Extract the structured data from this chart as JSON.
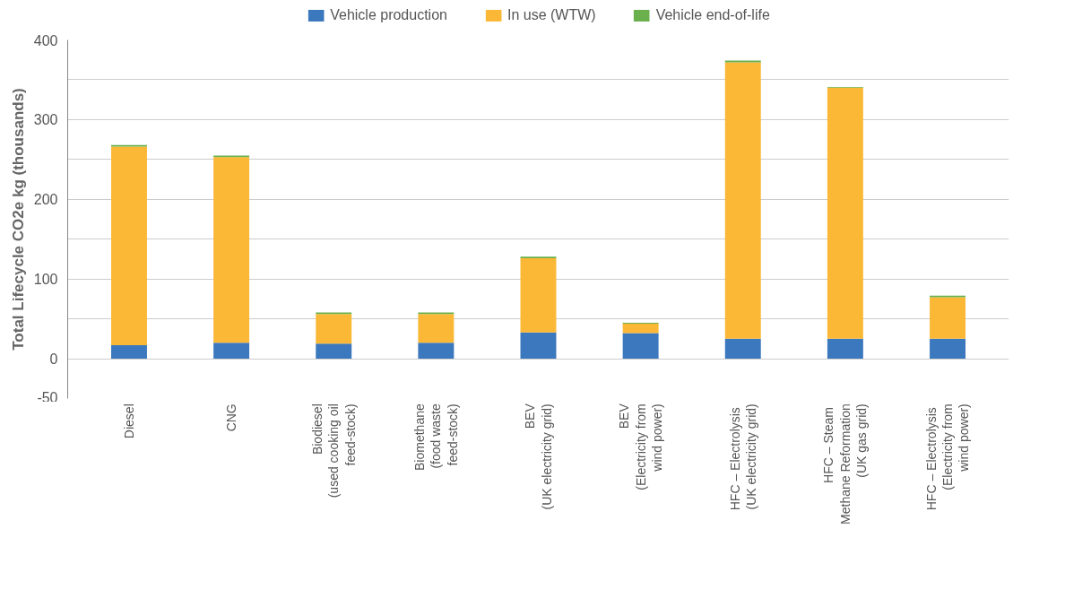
{
  "chart_data": {
    "type": "bar",
    "stacked": true,
    "ylabel": "Total Lifecycle CO2e kg (thousands)",
    "categories": [
      "Diesel",
      "CNG",
      "Biodiesel\n(used cooking oil\nfeed-stock)",
      "Biomethane\n(food waste\nfeed-stock)",
      "BEV\n(UK electricity grid)",
      "BEV\n(Electricity from\nwind power)",
      "HFC  – Electrolysis\n(UK electricity grid)",
      "HFC  – Steam\nMethane Reformation\n(UK gas grid)",
      "HFC  – Electrolysis\n(Electricity from\nwind power)"
    ],
    "series": [
      {
        "name": "Vehicle production",
        "color": "#3b78bd",
        "values": [
          17,
          20,
          19,
          20,
          33,
          32,
          25,
          25,
          25
        ]
      },
      {
        "name": "In use (WTW)",
        "color": "#fbb836",
        "values": [
          249,
          233,
          37,
          36,
          93,
          12,
          347,
          315,
          52
        ]
      },
      {
        "name": "Vehicle end-of-life",
        "color": "#6ab04c",
        "values": [
          2,
          2,
          2,
          2,
          2,
          1,
          2,
          1,
          2
        ]
      }
    ],
    "ylim": [
      -50,
      400
    ],
    "yticks": [
      -50,
      0,
      {
        "value": 50,
        "label": null
      },
      100,
      {
        "value": 150,
        "label": null
      },
      200,
      {
        "value": 250,
        "label": null
      },
      300,
      {
        "value": 350,
        "label": null
      },
      400
    ],
    "grid": "y",
    "legend": "top"
  }
}
